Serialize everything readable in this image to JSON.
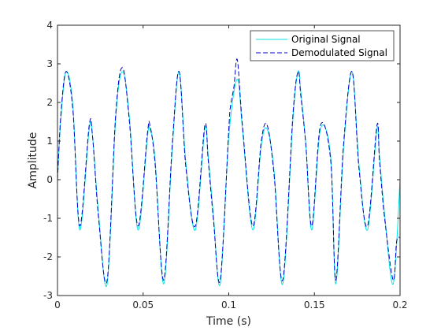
{
  "chart_data": {
    "type": "line",
    "xlabel": "Time (s)",
    "ylabel": "Amplitude",
    "xlim": [
      0,
      0.2
    ],
    "ylim": [
      -3,
      4
    ],
    "xticks": [
      0,
      0.05,
      0.1,
      0.15,
      0.2
    ],
    "xtick_labels": [
      "0",
      "0.05",
      "0.1",
      "0.15",
      "0.2"
    ],
    "yticks": [
      -3,
      -2,
      -1,
      0,
      1,
      2,
      3,
      4
    ],
    "ytick_labels": [
      "-3",
      "-2",
      "-1",
      "0",
      "1",
      "2",
      "3",
      "4"
    ],
    "grid": false,
    "legend_position": "top-right",
    "series": [
      {
        "name": "Original Signal",
        "color": "#00e5e5",
        "style": "solid",
        "x": [
          0,
          0.002,
          0.005,
          0.009,
          0.013,
          0.0185,
          0.0205,
          0.024,
          0.029,
          0.034,
          0.038,
          0.042,
          0.047,
          0.0525,
          0.054,
          0.057,
          0.062,
          0.067,
          0.071,
          0.075,
          0.0805,
          0.086,
          0.088,
          0.091,
          0.095,
          0.1,
          0.105,
          0.108,
          0.114,
          0.119,
          0.1225,
          0.1265,
          0.1315,
          0.1375,
          0.1405,
          0.142,
          0.145,
          0.1485,
          0.1535,
          0.1595,
          0.1625,
          0.167,
          0.172,
          0.176,
          0.181,
          0.1865,
          0.188,
          0.191,
          0.196,
          0.2
        ],
        "y": [
          0,
          1.6,
          2.8,
          1.9,
          -1.3,
          1.3,
          1.1,
          -0.9,
          -2.7,
          1.6,
          2.8,
          1.6,
          -1.3,
          1.1,
          1.3,
          0.5,
          -2.7,
          0.8,
          2.8,
          0.4,
          -1.3,
          1.3,
          0.6,
          -0.9,
          -2.7,
          1.1,
          2.6,
          1.3,
          -1.3,
          0.9,
          1.3,
          0.2,
          -2.7,
          1.6,
          2.8,
          2.3,
          0.9,
          -1.3,
          1.3,
          0.6,
          -2.7,
          0.8,
          2.8,
          0.4,
          -1.3,
          1.3,
          0.6,
          -0.9,
          -2.7,
          0.0
        ]
      },
      {
        "name": "Demodulated Signal",
        "color": "#0000cd",
        "style": "dashed",
        "x": [
          0,
          0.002,
          0.005,
          0.009,
          0.013,
          0.0185,
          0.0205,
          0.024,
          0.029,
          0.034,
          0.038,
          0.042,
          0.047,
          0.0525,
          0.054,
          0.057,
          0.062,
          0.067,
          0.071,
          0.075,
          0.0805,
          0.086,
          0.088,
          0.091,
          0.095,
          0.1,
          0.101,
          0.103,
          0.105,
          0.108,
          0.114,
          0.119,
          0.1225,
          0.1265,
          0.1315,
          0.1375,
          0.1405,
          0.142,
          0.145,
          0.1485,
          0.1535,
          0.1595,
          0.1625,
          0.167,
          0.172,
          0.176,
          0.181,
          0.1865,
          0.188,
          0.191,
          0.196,
          0.198,
          0.2
        ],
        "y": [
          0,
          1.7,
          2.8,
          1.8,
          -1.2,
          1.4,
          1.1,
          -1.0,
          -2.6,
          1.7,
          2.9,
          1.5,
          -1.2,
          1.2,
          1.4,
          0.4,
          -2.6,
          0.9,
          2.8,
          0.3,
          -1.2,
          1.4,
          0.5,
          -1.0,
          -2.6,
          1.3,
          1.9,
          2.4,
          3.1,
          1.4,
          -1.2,
          1.0,
          1.4,
          0.1,
          -2.6,
          1.7,
          2.8,
          2.2,
          0.9,
          -1.2,
          1.4,
          0.5,
          -2.6,
          0.9,
          2.8,
          0.3,
          -1.2,
          1.4,
          0.5,
          -1.0,
          -2.6,
          -1.6,
          -1.5
        ]
      }
    ]
  }
}
